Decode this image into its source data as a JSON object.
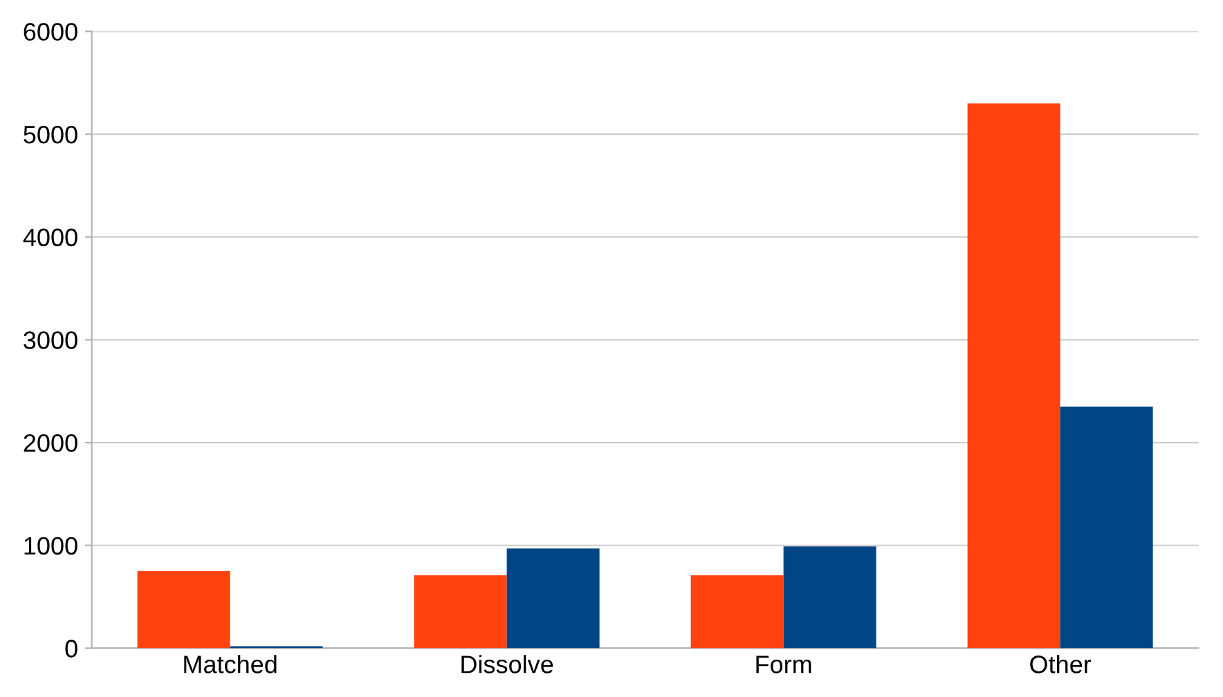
{
  "chart_data": {
    "type": "bar",
    "categories": [
      "Matched",
      "Dissolve",
      "Form",
      "Other"
    ],
    "series": [
      {
        "color": "#ff420e",
        "values": [
          750,
          710,
          710,
          5300
        ]
      },
      {
        "color": "#004586",
        "values": [
          20,
          970,
          990,
          2350
        ]
      }
    ],
    "ylim": [
      0,
      6000
    ],
    "yticks": [
      0,
      1000,
      2000,
      3000,
      4000,
      5000,
      6000
    ],
    "grid": "y"
  }
}
